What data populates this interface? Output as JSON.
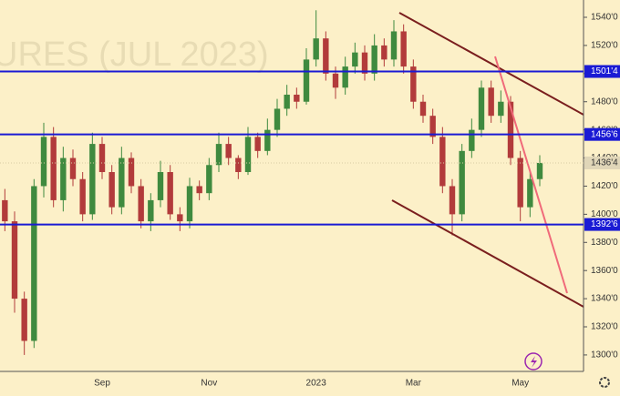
{
  "chart_data": {
    "type": "candlestick",
    "watermark": "URES (JUL 2023)",
    "categories": [
      null,
      null,
      null,
      null,
      null,
      null,
      null,
      null,
      null,
      null,
      "Sep",
      null,
      null,
      null,
      null,
      null,
      null,
      null,
      null,
      null,
      null,
      "Nov",
      null,
      null,
      null,
      null,
      null,
      null,
      null,
      null,
      null,
      null,
      "2023",
      null,
      null,
      null,
      null,
      null,
      null,
      null,
      null,
      null,
      "Mar",
      null,
      null,
      null,
      null,
      null,
      null,
      null,
      null,
      null,
      null,
      "May",
      null,
      null
    ],
    "open": [
      1410,
      1395,
      1340,
      1310,
      1420,
      1455,
      1410,
      1440,
      1425,
      1400,
      1450,
      1430,
      1405,
      1440,
      1420,
      1395,
      1410,
      1430,
      1400,
      1395,
      1420,
      1415,
      1435,
      1450,
      1440,
      1430,
      1455,
      1445,
      1460,
      1475,
      1485,
      1480,
      1510,
      1525,
      1500,
      1490,
      1505,
      1515,
      1500,
      1520,
      1510,
      1530,
      1505,
      1480,
      1470,
      1455,
      1420,
      1400,
      1445,
      1460,
      1490,
      1470,
      1480,
      1440,
      1405,
      1425
    ],
    "high": [
      1418,
      1402,
      1345,
      1425,
      1465,
      1462,
      1448,
      1446,
      1430,
      1458,
      1455,
      1435,
      1448,
      1444,
      1425,
      1415,
      1438,
      1435,
      1405,
      1426,
      1424,
      1440,
      1458,
      1455,
      1442,
      1462,
      1458,
      1468,
      1482,
      1492,
      1490,
      1518,
      1545,
      1530,
      1505,
      1512,
      1522,
      1520,
      1528,
      1525,
      1538,
      1535,
      1510,
      1485,
      1475,
      1462,
      1425,
      1450,
      1468,
      1495,
      1495,
      1488,
      1484,
      1445,
      1430,
      1442
    ],
    "low": [
      1388,
      1330,
      1300,
      1305,
      1412,
      1405,
      1402,
      1420,
      1395,
      1396,
      1425,
      1400,
      1400,
      1415,
      1390,
      1388,
      1405,
      1396,
      1388,
      1390,
      1410,
      1410,
      1430,
      1435,
      1425,
      1428,
      1440,
      1442,
      1455,
      1470,
      1475,
      1478,
      1505,
      1495,
      1482,
      1485,
      1500,
      1495,
      1495,
      1505,
      1505,
      1500,
      1475,
      1465,
      1450,
      1415,
      1385,
      1395,
      1440,
      1455,
      1465,
      1465,
      1435,
      1395,
      1398,
      1420
    ],
    "close": [
      1395,
      1340,
      1310,
      1420,
      1455,
      1410,
      1440,
      1425,
      1400,
      1450,
      1430,
      1405,
      1440,
      1420,
      1395,
      1410,
      1430,
      1400,
      1395,
      1420,
      1415,
      1435,
      1450,
      1440,
      1430,
      1455,
      1445,
      1460,
      1475,
      1485,
      1480,
      1510,
      1525,
      1500,
      1490,
      1505,
      1515,
      1500,
      1520,
      1510,
      1530,
      1505,
      1480,
      1470,
      1455,
      1420,
      1400,
      1445,
      1460,
      1490,
      1470,
      1480,
      1440,
      1405,
      1425,
      1436.5
    ],
    "up_color": "#3f8a3f",
    "down_color": "#b23b3b",
    "ylim": [
      1288.3,
      1552.3
    ],
    "yticks": [
      {
        "value": 1300,
        "label": "1300'0"
      },
      {
        "value": 1320,
        "label": "1320'0"
      },
      {
        "value": 1340,
        "label": "1340'0"
      },
      {
        "value": 1360,
        "label": "1360'0"
      },
      {
        "value": 1380,
        "label": "1380'0"
      },
      {
        "value": 1400,
        "label": "1400'0"
      },
      {
        "value": 1420,
        "label": "1420'0"
      },
      {
        "value": 1440,
        "label": "1440'0"
      },
      {
        "value": 1460,
        "label": "1460'0"
      },
      {
        "value": 1480,
        "label": "1480'0"
      },
      {
        "value": 1500,
        "label": "1500'0"
      },
      {
        "value": 1520,
        "label": "1520'0"
      },
      {
        "value": 1540,
        "label": "1540'0"
      }
    ],
    "levels": [
      {
        "value": 1501.5,
        "label": "1501'4"
      },
      {
        "value": 1456.75,
        "label": "1456'6"
      },
      {
        "value": 1392.75,
        "label": "1392'6"
      }
    ],
    "level_color": "#1a1ad4",
    "last_price": {
      "value": 1436.5,
      "label": "1436'4"
    }
  }
}
